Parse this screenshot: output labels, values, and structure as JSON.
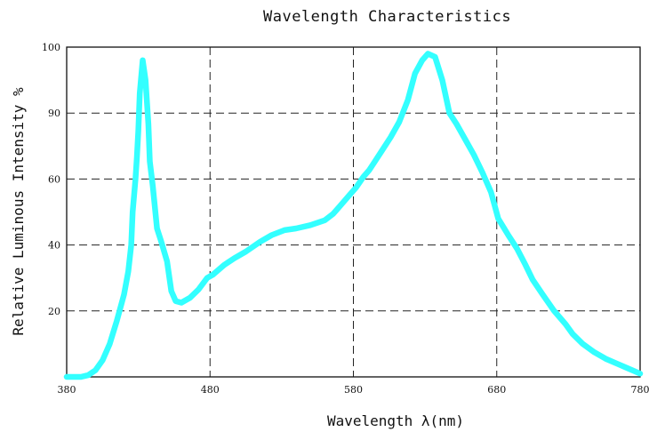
{
  "chart_data": {
    "type": "line",
    "title": "Wavelength Characteristics",
    "xlabel": "Wavelength λ(nm)",
    "ylabel": "Relative Luminous Intensity %",
    "x_ticks": [
      "380",
      "480",
      "580",
      "680",
      "780"
    ],
    "y_ticks": [
      "20",
      "40",
      "60",
      "90",
      "100"
    ],
    "x_range": [
      380,
      780
    ],
    "grid": "dashed",
    "line_color": "#33ffff",
    "series": [
      {
        "x": [
          380,
          390,
          395,
          400,
          405,
          410,
          415,
          420,
          423,
          425,
          426,
          428,
          429,
          430,
          431,
          433,
          435,
          437,
          438,
          440,
          443,
          446,
          450,
          453,
          456,
          460,
          466,
          472,
          478,
          482,
          490,
          497,
          505,
          515,
          523,
          532,
          540,
          550,
          560,
          566,
          571,
          577,
          582,
          587,
          591,
          595,
          600,
          606,
          612,
          618,
          623,
          628,
          632,
          637,
          642,
          647,
          652,
          658,
          664,
          670,
          676,
          681,
          688,
          694,
          700,
          705,
          712,
          720,
          728,
          733,
          740,
          748,
          756,
          764,
          772,
          780
        ],
        "y": [
          0,
          0,
          0.5,
          2,
          5,
          10,
          17,
          25,
          32,
          40,
          50,
          60,
          70,
          82,
          93,
          98,
          95,
          85,
          68,
          58,
          45,
          41,
          35,
          26,
          23,
          22.5,
          24,
          26.5,
          30,
          31,
          34,
          36,
          38,
          41,
          43,
          44.5,
          45,
          46,
          47.5,
          49.5,
          52,
          55,
          57.5,
          61,
          64,
          68,
          73,
          79,
          86,
          92,
          96,
          98,
          99,
          98.5,
          95,
          90,
          85,
          78,
          71,
          63,
          56,
          48,
          43,
          39,
          34,
          29.5,
          25,
          20,
          16,
          13,
          10,
          7.5,
          5.5,
          4,
          2.5,
          1
        ]
      }
    ]
  }
}
